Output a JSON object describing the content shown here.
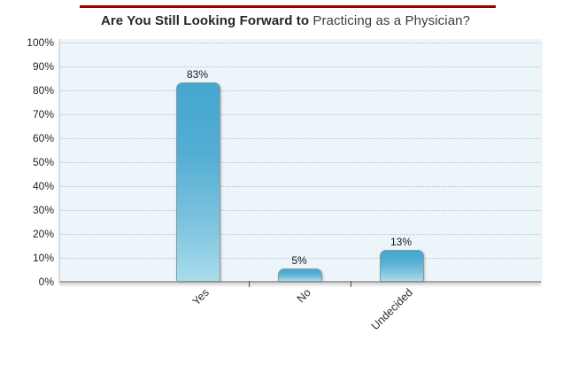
{
  "title": {
    "bold_part": "Are You Still Looking Forward to",
    "regular_part": " Practicing as a Physician?"
  },
  "accent_color": "#990000",
  "chart_data": {
    "type": "bar",
    "title": "Are You Still Looking Forward to Practicing as a Physician?",
    "categories": [
      "Yes",
      "No",
      "Undecided"
    ],
    "values": [
      83,
      5,
      13
    ],
    "value_labels": [
      "83%",
      "5%",
      "13%"
    ],
    "xlabel": "",
    "ylabel": "",
    "ylim": [
      0,
      100
    ],
    "y_tick_step": 10,
    "y_tick_labels": [
      "0%",
      "10%",
      "20%",
      "30%",
      "40%",
      "50%",
      "60%",
      "70%",
      "80%",
      "90%",
      "100%"
    ],
    "grid": "horizontal-dotted",
    "legend": "none",
    "plot_background": "#ebf5fa",
    "bar_gradient_top": "#45a6ce",
    "bar_gradient_bottom": "#a9dcec",
    "x_label_rotation_deg": -45
  }
}
